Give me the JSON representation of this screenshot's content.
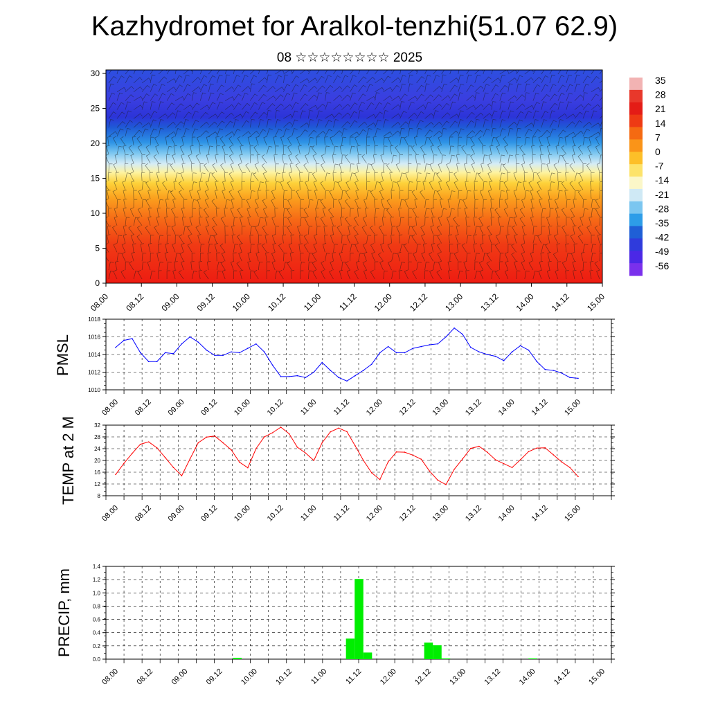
{
  "title": "Kazhydromet for Aralkol-tenzhi(51.07 62.9)",
  "subtitle": "08 ☆☆☆☆☆☆☆☆ 2025",
  "colors": {
    "pmsl_line": "#0000ff",
    "temp_line": "#ff0000",
    "precip_bar": "#00ee00"
  },
  "time_ticks": [
    "08.00",
    "08.12",
    "09.00",
    "09.12",
    "10.00",
    "10.12",
    "11.00",
    "11.12",
    "12.00",
    "12.12",
    "13.00",
    "13.12",
    "14.00",
    "14.12",
    "15.00"
  ],
  "chart_data": [
    {
      "type": "heatmap",
      "name_hint": "cross-section",
      "x_ticks": [
        "08.00",
        "08.12",
        "09.00",
        "09.12",
        "10.00",
        "10.12",
        "11.00",
        "11.12",
        "12.00",
        "12.12",
        "13.00",
        "13.12",
        "14.00",
        "14.12",
        "15.00"
      ],
      "y_ticks": [
        "0",
        "5",
        "10",
        "15",
        "20",
        "25",
        "30"
      ],
      "ylim": [
        0,
        30.5
      ],
      "colorbar_labels": [
        "35",
        "28",
        "21",
        "14",
        "7",
        "0",
        "-7",
        "-14",
        "-21",
        "-28",
        "-35",
        "-42",
        "-49",
        "-56"
      ],
      "colorbar_colors": [
        "#f2b3b3",
        "#e8382b",
        "#e41c16",
        "#ee3a14",
        "#f56a12",
        "#fa9418",
        "#fdbf28",
        "#fde36a",
        "#fbf7c8",
        "#cfe9f5",
        "#7bc6f0",
        "#2d9de8",
        "#1f5fd6",
        "#2f3bdc",
        "#4b28e6",
        "#7a30ec"
      ]
    },
    {
      "type": "line",
      "ylabel": "PMSL",
      "ylim": [
        1010,
        1018
      ],
      "y_ticks": [
        "1010",
        "1012",
        "1014",
        "1016",
        "1018"
      ],
      "x": [
        0,
        3,
        6,
        9,
        12,
        15,
        18,
        21,
        24,
        27,
        30,
        33,
        36,
        39,
        42,
        45,
        48,
        51,
        54,
        57,
        60,
        63,
        66,
        69,
        72,
        75,
        78,
        81,
        84,
        87,
        90,
        93,
        96,
        99,
        102,
        105,
        108,
        111,
        114,
        117,
        120,
        123,
        126,
        129,
        132,
        135,
        138,
        141,
        144,
        147,
        150,
        153,
        156,
        159,
        162,
        165,
        168
      ],
      "values": [
        1014.8,
        1015.6,
        1015.8,
        1014.2,
        1013.2,
        1013.2,
        1014.2,
        1014.1,
        1015.2,
        1016.0,
        1015.4,
        1014.5,
        1013.9,
        1013.9,
        1014.3,
        1014.2,
        1014.7,
        1015.2,
        1014.3,
        1012.8,
        1011.5,
        1011.5,
        1011.6,
        1011.4,
        1012.0,
        1013.1,
        1012.2,
        1011.4,
        1011.0,
        1011.6,
        1012.2,
        1012.9,
        1014.2,
        1014.9,
        1014.2,
        1014.2,
        1014.7,
        1014.9,
        1015.1,
        1015.2,
        1016.0,
        1017.0,
        1016.3,
        1014.8,
        1014.3,
        1014.0,
        1013.8,
        1013.3,
        1014.3,
        1015.0,
        1014.5,
        1013.2,
        1012.3,
        1012.2,
        1011.9,
        1011.4,
        1011.3
      ]
    },
    {
      "type": "line",
      "ylabel": "TEMP at 2 M",
      "ylim": [
        8,
        32
      ],
      "y_ticks": [
        "8",
        "12",
        "16",
        "20",
        "24",
        "28",
        "32"
      ],
      "x": [
        0,
        3,
        6,
        9,
        12,
        15,
        18,
        21,
        24,
        27,
        30,
        33,
        36,
        39,
        42,
        45,
        48,
        51,
        54,
        57,
        60,
        63,
        66,
        69,
        72,
        75,
        78,
        81,
        84,
        87,
        90,
        93,
        96,
        99,
        102,
        105,
        108,
        111,
        114,
        117,
        120,
        123,
        126,
        129,
        132,
        135,
        138,
        141,
        144,
        147,
        150,
        153,
        156,
        159,
        162,
        165,
        168
      ],
      "values": [
        15.2,
        19.0,
        22.4,
        25.5,
        26.3,
        24.3,
        21.0,
        17.6,
        14.8,
        20.5,
        26.0,
        27.9,
        28.3,
        26.0,
        23.6,
        19.4,
        17.5,
        24.0,
        28.0,
        29.4,
        31.3,
        29.1,
        24.5,
        22.5,
        20.0,
        26.0,
        29.7,
        31.0,
        29.8,
        25.0,
        20.0,
        15.8,
        13.5,
        19.5,
        22.9,
        22.8,
        21.8,
        20.4,
        16.4,
        13.3,
        11.8,
        17.0,
        20.5,
        24.1,
        24.8,
        22.8,
        20.2,
        18.9,
        17.6,
        20.2,
        23.0,
        24.2,
        24.3,
        21.9,
        19.5,
        17.6,
        14.5
      ]
    },
    {
      "type": "bar",
      "ylabel": "PRECIP, mm",
      "ylim": [
        0,
        1.4
      ],
      "y_ticks": [
        "0.0",
        "0.2",
        "0.4",
        "0.6",
        "0.8",
        "1.0",
        "1.2",
        "1.4"
      ],
      "x": [
        42,
        81,
        84,
        87,
        108,
        111,
        114,
        144
      ],
      "values": [
        0.02,
        0.31,
        1.21,
        0.1,
        0.25,
        0.21,
        0.01,
        0.01
      ]
    }
  ]
}
